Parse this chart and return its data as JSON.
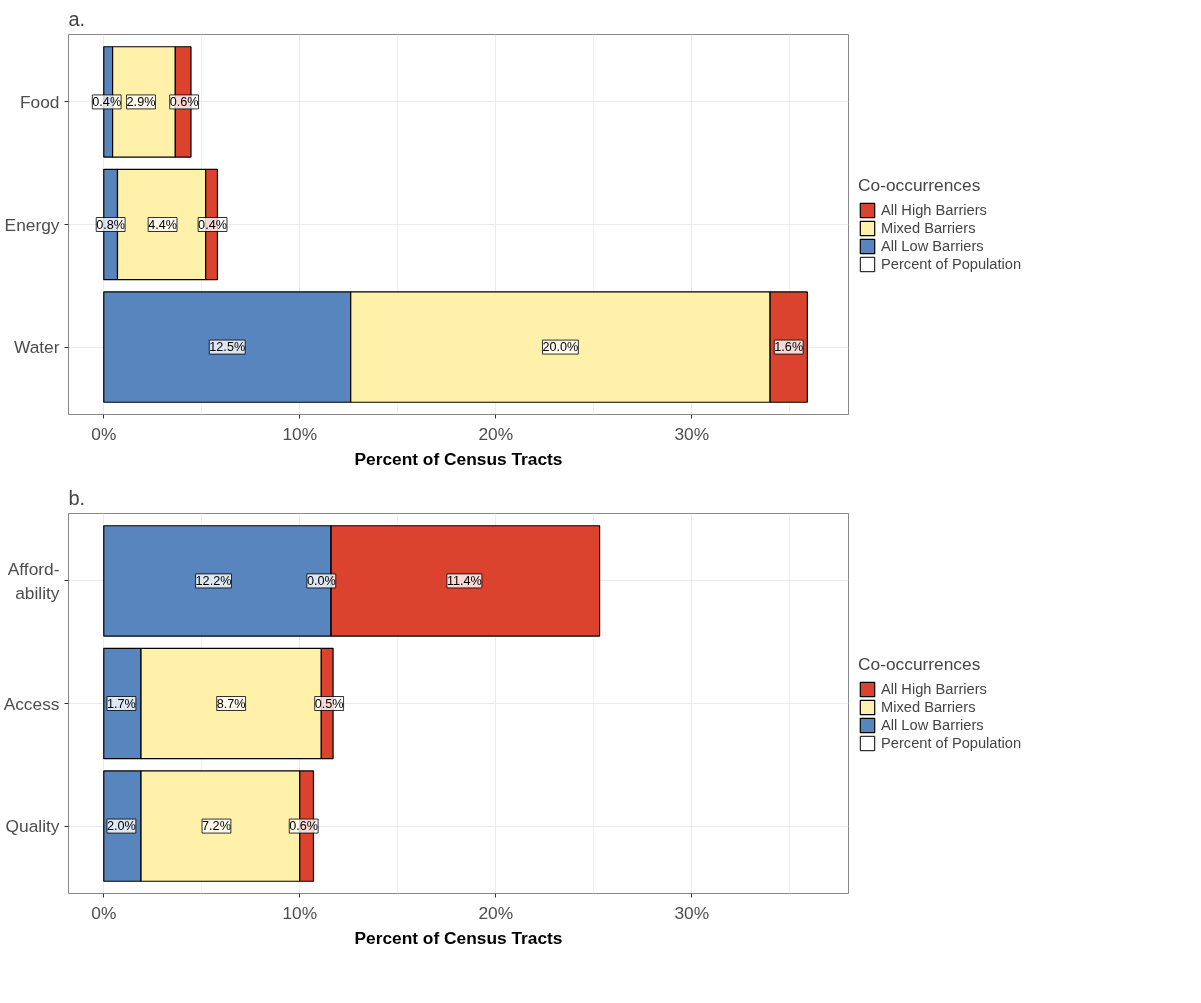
{
  "chart_data": [
    {
      "type": "bar",
      "orientation": "horizontal",
      "stacked": true,
      "title": "a.",
      "xlabel": "Percent of Census Tracts",
      "legend_title": "Co-occurrences",
      "legend": "right",
      "grid": true,
      "categories": [
        "Food",
        "Energy",
        "Water"
      ],
      "xlim": [
        -1.8,
        38
      ],
      "xticks": [
        {
          "value": 0,
          "label": "0%"
        },
        {
          "value": 10,
          "label": "10%"
        },
        {
          "value": 20,
          "label": "20%"
        },
        {
          "value": 30,
          "label": "30%"
        }
      ],
      "series": [
        {
          "name": "All Low Barriers",
          "color": "#5885bd",
          "values": [
            0.45,
            0.7,
            12.6
          ]
        },
        {
          "name": "Mixed Barriers",
          "color": "#fff0aa",
          "values": [
            3.2,
            4.5,
            21.4
          ]
        },
        {
          "name": "All High Barriers",
          "color": "#dc432e",
          "values": [
            0.8,
            0.6,
            1.9
          ]
        }
      ],
      "annotations": [
        "Percent of Population",
        {
          "text": "0.4%",
          "x": 0.15,
          "y": "Food"
        },
        {
          "text": "2.9%",
          "x": 1.9,
          "y": "Food"
        },
        {
          "text": "0.6%",
          "x": 4.1,
          "y": "Food"
        },
        {
          "text": "0.8%",
          "x": 0.35,
          "y": "Energy"
        },
        {
          "text": "4.4%",
          "x": 3.0,
          "y": "Energy"
        },
        {
          "text": "0.4%",
          "x": 5.55,
          "y": "Energy"
        },
        {
          "text": "12.5%",
          "x": 6.3,
          "y": "Water"
        },
        {
          "text": "20.0%",
          "x": 23.3,
          "y": "Water"
        },
        {
          "text": "1.6%",
          "x": 34.95,
          "y": "Water"
        }
      ]
    },
    {
      "type": "bar",
      "orientation": "horizontal",
      "stacked": true,
      "title": "b.",
      "xlabel": "Percent of Census Tracts",
      "legend_title": "Co-occurrences",
      "legend": "right",
      "grid": true,
      "categories": [
        "Afford-\nability",
        "Access",
        "Quality"
      ],
      "xlim": [
        -1.8,
        38
      ],
      "xticks": [
        {
          "value": 0,
          "label": "0%"
        },
        {
          "value": 10,
          "label": "10%"
        },
        {
          "value": 20,
          "label": "20%"
        },
        {
          "value": 30,
          "label": "30%"
        }
      ],
      "series": [
        {
          "name": "All Low Barriers",
          "color": "#5885bd",
          "values": [
            11.6,
            1.9,
            1.9
          ]
        },
        {
          "name": "Mixed Barriers",
          "color": "#fff0aa",
          "values": [
            0,
            9.2,
            8.1
          ]
        },
        {
          "name": "All High Barriers",
          "color": "#dc432e",
          "values": [
            13.7,
            0.6,
            0.7
          ]
        }
      ],
      "annotations": [
        "Percent of Population",
        {
          "text": "12.2%",
          "x": 5.6,
          "y": "Afford-\nability"
        },
        {
          "text": "0.0%",
          "x": 11.1,
          "y": "Afford-\nability"
        },
        {
          "text": "11.4%",
          "x": 18.4,
          "y": "Afford-\nability"
        },
        {
          "text": "1.7%",
          "x": 0.9,
          "y": "Access"
        },
        {
          "text": "8.7%",
          "x": 6.5,
          "y": "Access"
        },
        {
          "text": "0.5%",
          "x": 11.5,
          "y": "Access"
        },
        {
          "text": "2.0%",
          "x": 0.9,
          "y": "Quality"
        },
        {
          "text": "7.2%",
          "x": 5.75,
          "y": "Quality"
        },
        {
          "text": "0.6%",
          "x": 10.2,
          "y": "Quality"
        }
      ]
    }
  ]
}
